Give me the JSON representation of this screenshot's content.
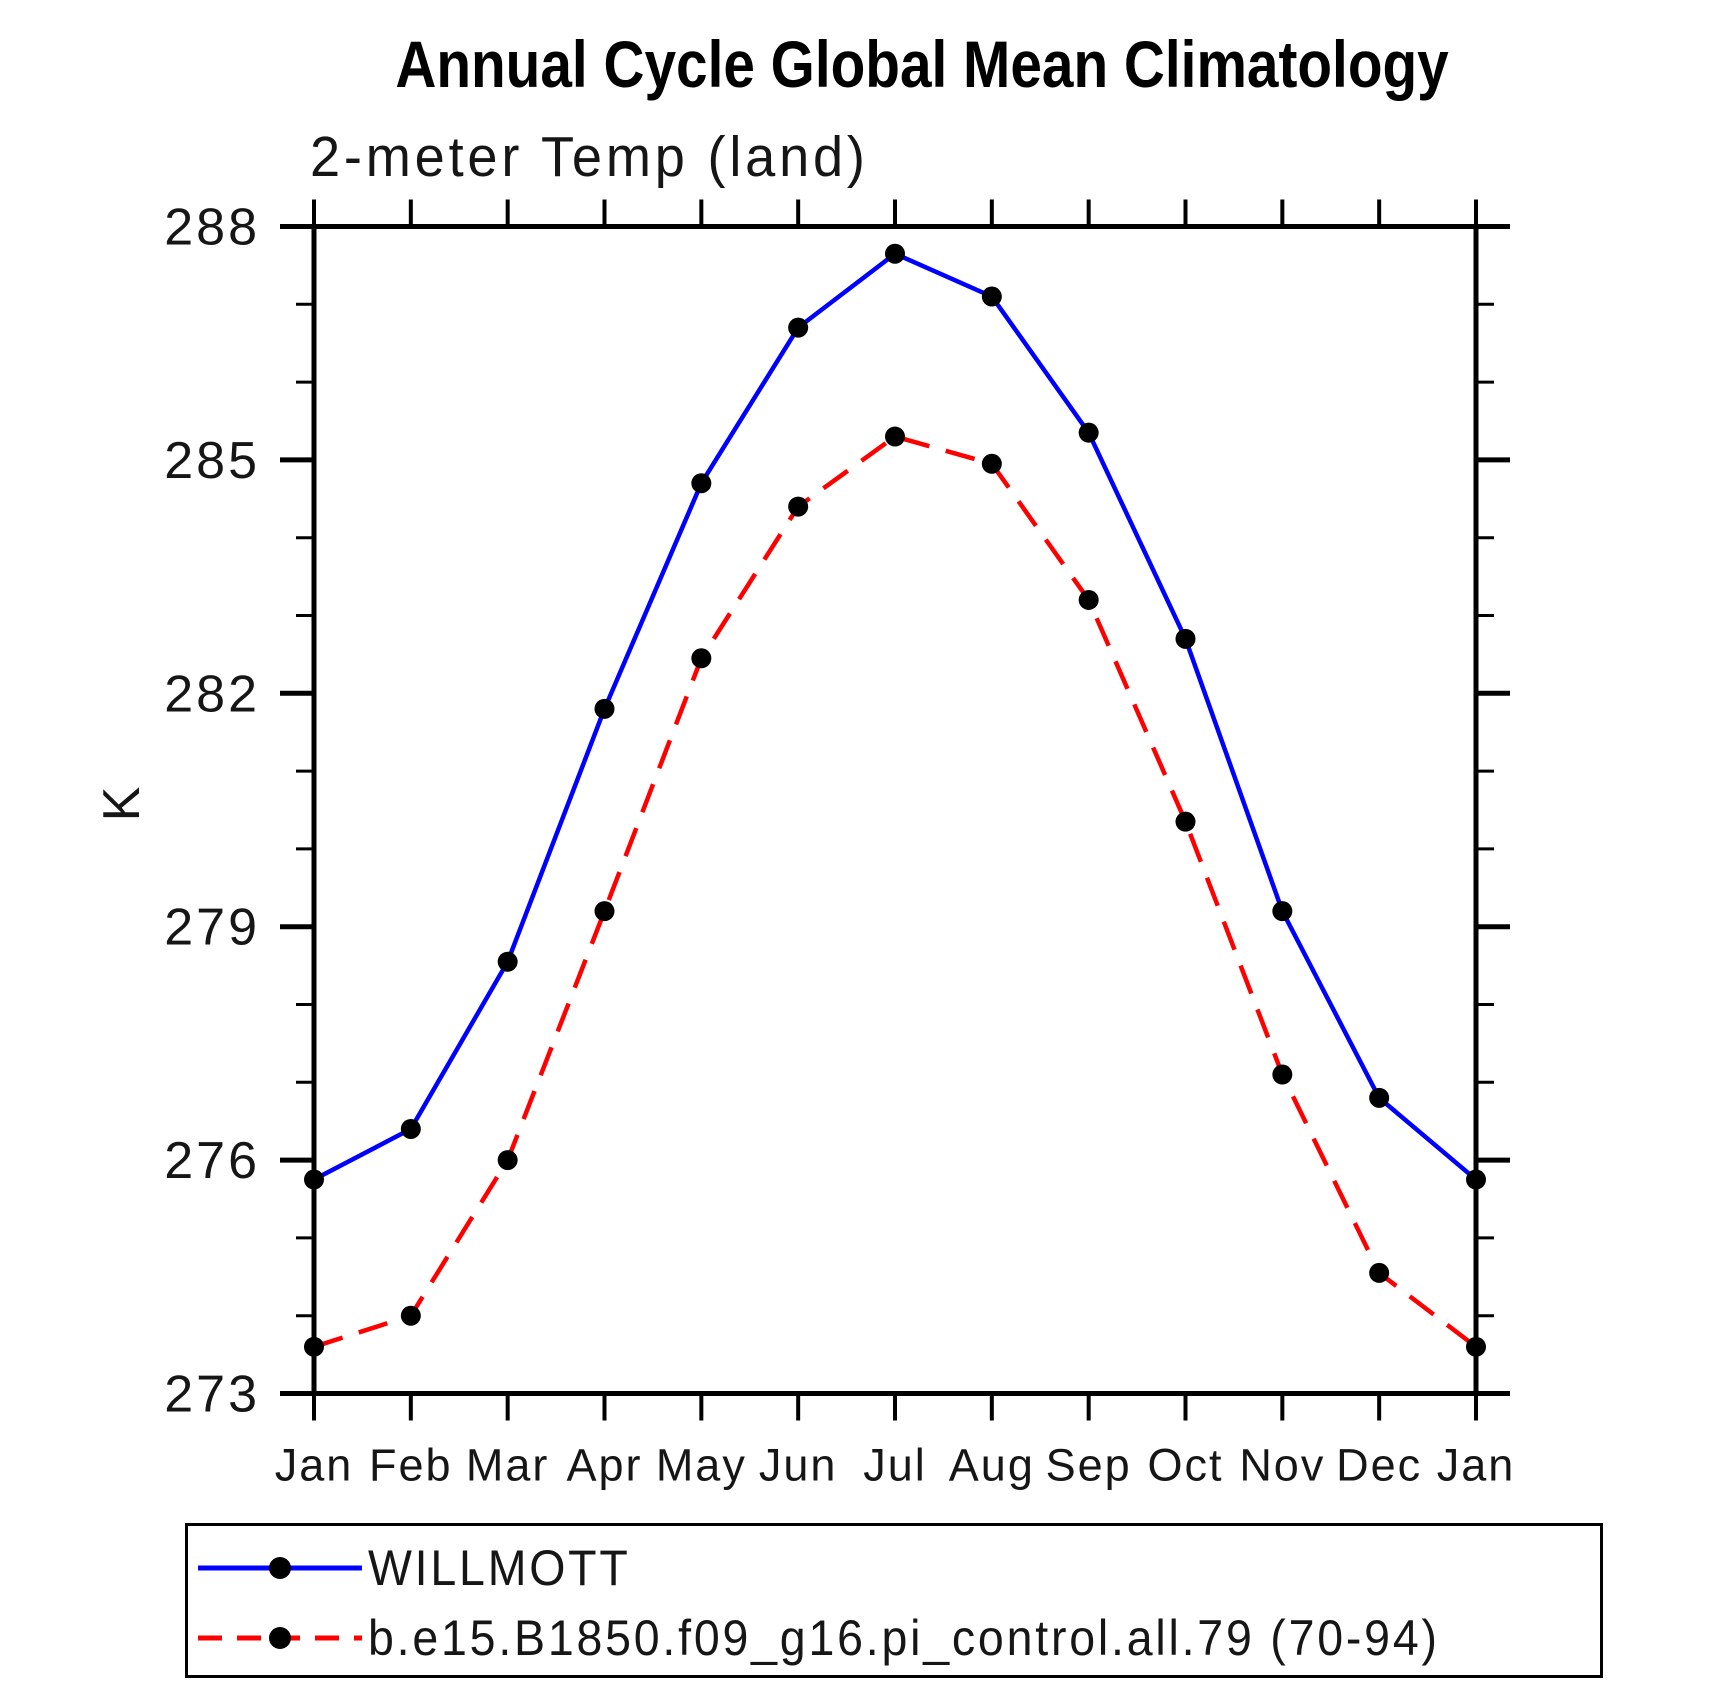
{
  "header": {
    "title": "Annual Cycle Global Mean Climatology",
    "subtitle": "2-meter Temp (land)"
  },
  "y_axis": {
    "label": "K"
  },
  "legend": {
    "entries": [
      {
        "label": "WILLMOTT",
        "color": "#0000ff",
        "line_style": "solid"
      },
      {
        "label": "b.e15.B1850.f09_g16.pi_control.all.79 (70-94)",
        "color": "#ff0000",
        "line_style": "dashed"
      }
    ]
  },
  "chart_data": {
    "type": "line",
    "title": "Annual Cycle Global Mean Climatology",
    "subtitle": "2-meter Temp (land)",
    "ylabel": "K",
    "categories": [
      "Jan",
      "Feb",
      "Mar",
      "Apr",
      "May",
      "Jun",
      "Jul",
      "Aug",
      "Sep",
      "Oct",
      "Nov",
      "Dec",
      "Jan"
    ],
    "series": [
      {
        "name": "WILLMOTT",
        "color": "#0000ff",
        "line_style": "solid",
        "marker": "filled-circle",
        "marker_color": "#000000",
        "values": [
          275.75,
          276.4,
          278.55,
          281.8,
          284.7,
          286.7,
          287.65,
          287.1,
          285.35,
          282.7,
          279.2,
          276.8,
          275.75
        ]
      },
      {
        "name": "b.e15.B1850.f09_g16.pi_control.all.79 (70-94)",
        "color": "#ff0000",
        "line_style": "dashed",
        "marker": "filled-circle",
        "marker_color": "#000000",
        "values": [
          273.6,
          274.0,
          276.0,
          279.2,
          282.45,
          284.4,
          285.3,
          284.95,
          283.2,
          280.35,
          277.1,
          274.55,
          273.6
        ]
      }
    ],
    "ylim": [
      273,
      288
    ],
    "yticks_major": [
      273,
      276,
      279,
      282,
      285,
      288
    ],
    "ytick_minor_step": 1,
    "grid": false,
    "legend_position": "bottom-left-box"
  }
}
